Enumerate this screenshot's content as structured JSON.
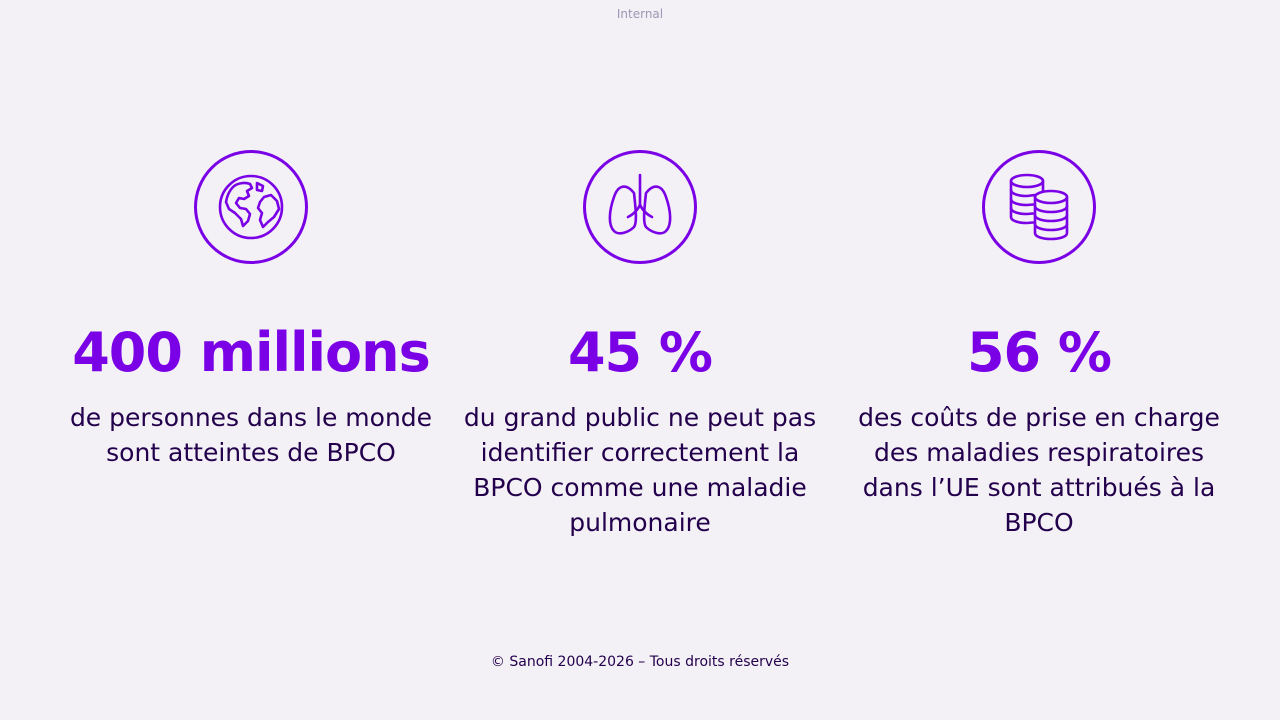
{
  "header": {
    "classification": "Internal"
  },
  "stats": [
    {
      "icon": "globe-icon",
      "value": "400 millions",
      "description": "de personnes dans le monde sont atteintes de BPCO"
    },
    {
      "icon": "lungs-icon",
      "value": "45 %",
      "description": "du grand public ne peut pas identifier correctement la BPCO comme une maladie pulmonaire"
    },
    {
      "icon": "coins-icon",
      "value": "56 %",
      "description": "des coûts de prise en charge des maladies respiratoires dans l’UE sont attribués à la BPCO"
    }
  ],
  "footer": {
    "copyright": "© Sanofi 2004-2026 – Tous droits réservés"
  },
  "colors": {
    "background": "#f3f0f6",
    "accent": "#7a00e6",
    "text": "#23004c"
  }
}
